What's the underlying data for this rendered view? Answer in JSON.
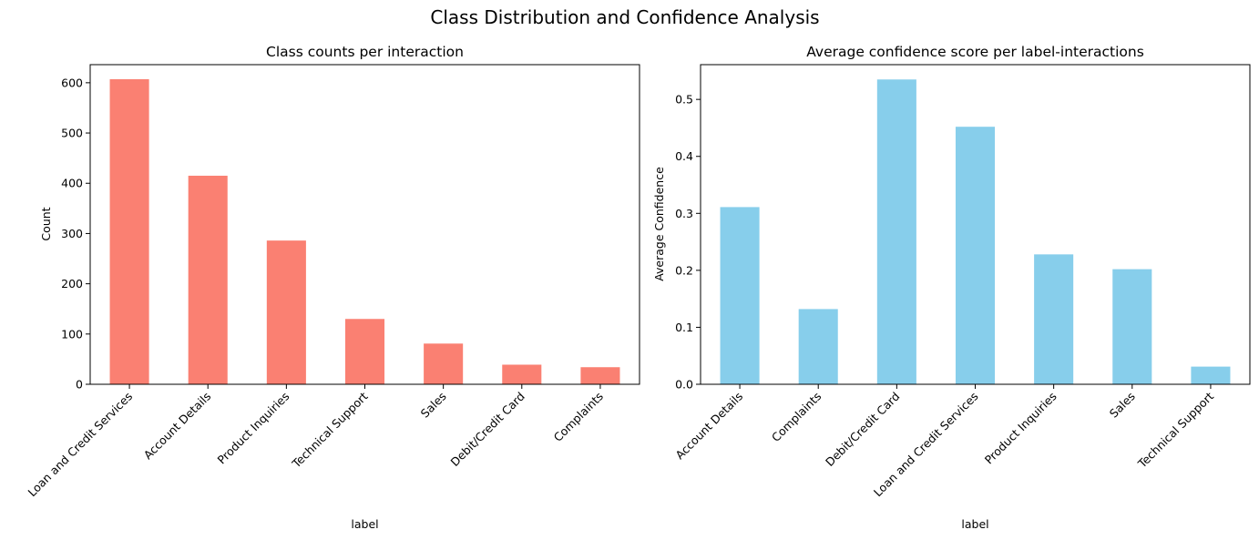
{
  "figure": {
    "title": "Class Distribution and Confidence Analysis"
  },
  "colors": {
    "left_bars": "#fa8072",
    "right_bars": "#87ceeb",
    "axis": "#000000"
  },
  "chart_data": [
    {
      "type": "bar",
      "title": "Class counts per interaction",
      "xlabel": "label",
      "ylabel": "Count",
      "categories": [
        "Loan and Credit Services",
        "Account Details",
        "Product Inquiries",
        "Technical Support",
        "Sales",
        "Debit/Credit Card",
        "Complaints"
      ],
      "values": [
        607,
        415,
        286,
        130,
        81,
        39,
        34
      ],
      "ylim": [
        0,
        636
      ],
      "yticks": [
        0,
        100,
        200,
        300,
        400,
        500,
        600
      ],
      "ytick_labels": [
        "0",
        "100",
        "200",
        "300",
        "400",
        "500",
        "600"
      ],
      "grid": false,
      "legend": "none"
    },
    {
      "type": "bar",
      "title": "Average confidence score per label-interactions",
      "xlabel": "label",
      "ylabel": "Average Confidence",
      "categories": [
        "Account Details",
        "Complaints",
        "Debit/Credit Card",
        "Loan and Credit Services",
        "Product Inquiries",
        "Sales",
        "Technical Support"
      ],
      "values": [
        0.311,
        0.132,
        0.535,
        0.452,
        0.228,
        0.202,
        0.031
      ],
      "ylim": [
        0,
        0.561
      ],
      "yticks": [
        0,
        0.1,
        0.2,
        0.3,
        0.4,
        0.5
      ],
      "ytick_labels": [
        "0.0",
        "0.1",
        "0.2",
        "0.3",
        "0.4",
        "0.5"
      ],
      "grid": false,
      "legend": "none"
    }
  ]
}
